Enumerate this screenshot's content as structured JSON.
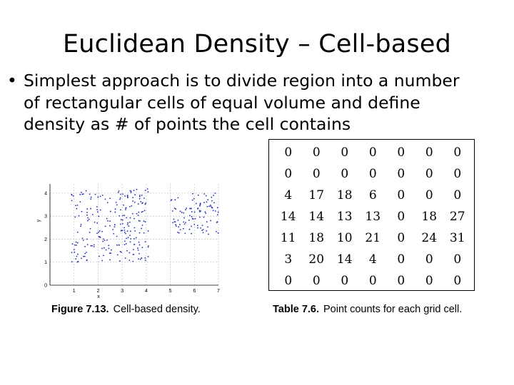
{
  "slide": {
    "title": "Euclidean Density – Cell-based",
    "bullet_symbol": "•",
    "bullet_text": "Simplest approach is to divide region into a number of rectangular cells of equal volume and define density as # of points the cell contains"
  },
  "figure": {
    "caption_number": "Figure 7.13.",
    "caption_text": "Cell-based density.",
    "xlabel": "x",
    "ylabel": "y",
    "x_ticks": [
      "1",
      "2",
      "3",
      "4",
      "5",
      "6",
      "7"
    ],
    "y_ticks": [
      "0",
      "1",
      "2",
      "3",
      "4"
    ]
  },
  "table": {
    "caption_number": "Table 7.6.",
    "caption_text": "Point counts for each grid cell.",
    "rows": [
      [
        "0",
        "0",
        "0",
        "0",
        "0",
        "0",
        "0"
      ],
      [
        "0",
        "0",
        "0",
        "0",
        "0",
        "0",
        "0"
      ],
      [
        "4",
        "17",
        "18",
        "6",
        "0",
        "0",
        "0"
      ],
      [
        "14",
        "14",
        "13",
        "13",
        "0",
        "18",
        "27"
      ],
      [
        "11",
        "18",
        "10",
        "21",
        "0",
        "24",
        "31"
      ],
      [
        "3",
        "20",
        "14",
        "4",
        "0",
        "0",
        "0"
      ],
      [
        "0",
        "0",
        "0",
        "0",
        "0",
        "0",
        "0"
      ]
    ]
  },
  "colors": {
    "points": "#1f2fb0",
    "grid": "#c8c8c8"
  }
}
